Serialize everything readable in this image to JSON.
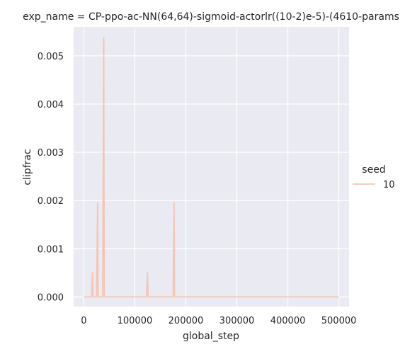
{
  "chart_data": {
    "type": "line",
    "title": "exp_name = CP-ppo-ac-NN(64,64)-sigmoid-actorlr((10-2)e-5)-(4610-params",
    "xlabel": "global_step",
    "ylabel": "clipfrac",
    "xlim": [
      -20000,
      520000
    ],
    "ylim": [
      -0.0002,
      0.0056
    ],
    "xticks": [
      0,
      100000,
      200000,
      300000,
      400000,
      500000
    ],
    "yticks": [
      0.0,
      0.001,
      0.002,
      0.003,
      0.004,
      0.005
    ],
    "xtick_labels": [
      "0",
      "100000",
      "200000",
      "300000",
      "400000",
      "500000"
    ],
    "ytick_labels": [
      "0.000",
      "0.001",
      "0.002",
      "0.003",
      "0.004",
      "0.005"
    ],
    "grid": true,
    "legend": {
      "title": "seed",
      "placement": "right",
      "entries": [
        "10"
      ]
    },
    "series": [
      {
        "name": "10",
        "color": "#f4c5b3",
        "x": [
          0,
          15000,
          17000,
          18000,
          25000,
          27000,
          28000,
          37000,
          39000,
          40000,
          123000,
          125000,
          126000,
          175000,
          177000,
          178000,
          500000
        ],
        "y": [
          0,
          0,
          0.0005,
          0,
          0,
          0.00195,
          0,
          0,
          0.00537,
          0,
          0,
          0.0005,
          0,
          0,
          0.00195,
          0,
          0
        ]
      }
    ]
  }
}
